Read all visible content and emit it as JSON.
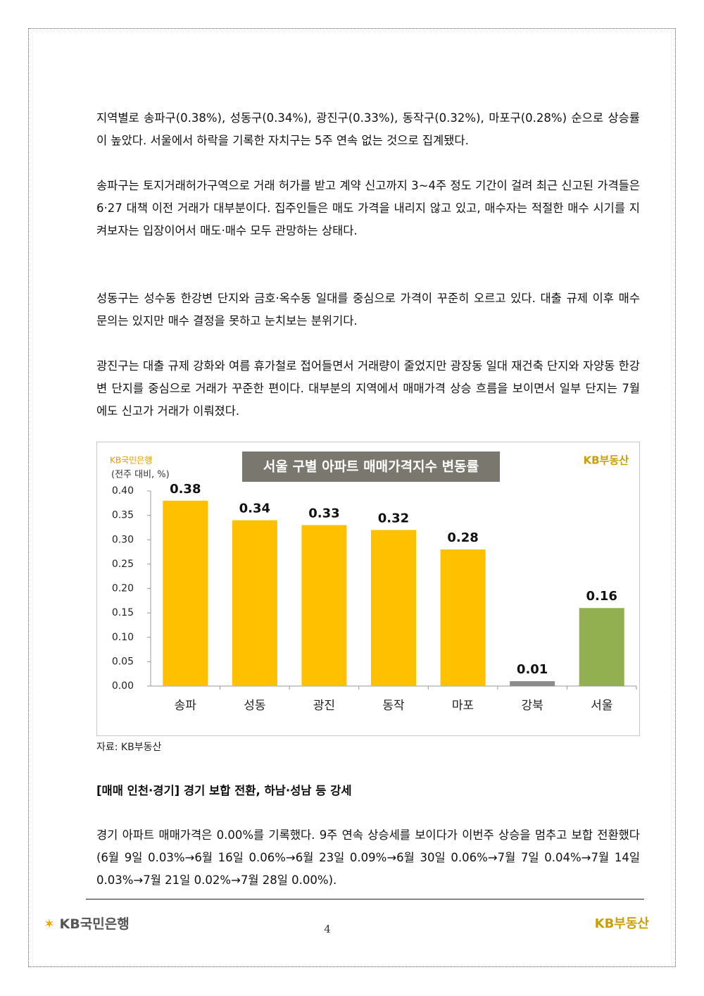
{
  "paragraphs": [
    "지역별로 송파구(0.38%), 성동구(0.34%), 광진구(0.33%), 동작구(0.32%), 마포구(0.28%) 순으로 상승률이 높았다. 서울에서 하락을 기록한 자치구는 5주 연속 없는 것으로 집계됐다.",
    "송파구는 토지거래허가구역으로 거래 허가를 받고 계약 신고까지 3~4주 정도 기간이 걸려 최근 신고된 가격들은 6·27 대책 이전 거래가 대부분이다. 집주인들은 매도 가격을 내리지 않고 있고, 매수자는 적절한 매수 시기를 지켜보자는 입장이어서 매도·매수 모두 관망하는 상태다.",
    "성동구는 성수동 한강변 단지와 금호·옥수동 일대를 중심으로 가격이 꾸준히 오르고 있다. 대출 규제 이후 매수 문의는 있지만 매수 결정을 못하고 눈치보는 분위기다.",
    "광진구는 대출 규제 강화와 여름 휴가철로 접어들면서 거래량이 줄었지만 광장동 일대 재건축 단지와 자양동 한강변 단지를 중심으로 거래가 꾸준한 편이다. 대부분의 지역에서 매매가격 상승 흐름을 보이면서 일부 단지는 7월에도 신고가 거래가 이뤄졌다."
  ],
  "chart_data": {
    "type": "bar",
    "logo": "KB국민은행",
    "title": "서울 구별 아파트 매매가격지수 변동률",
    "brand": "KB부동산",
    "y_label": "(전주 대비, %)",
    "categories": [
      "송파",
      "성동",
      "광진",
      "동작",
      "마포",
      "강북",
      "서울"
    ],
    "values": [
      0.38,
      0.34,
      0.33,
      0.32,
      0.28,
      0.01,
      0.16
    ],
    "colors": [
      "#ffc000",
      "#ffc000",
      "#ffc000",
      "#ffc000",
      "#ffc000",
      "#8c8c8c",
      "#92b050"
    ],
    "ylim": [
      0,
      0.4
    ],
    "yticks": [
      {
        "value": 0,
        "label": "0.00"
      },
      0.05,
      {
        "value": 0.1,
        "label": "0.10"
      },
      0.15,
      {
        "value": 0.2,
        "label": "0.20"
      },
      0.25,
      {
        "value": 0.3,
        "label": "0.30"
      },
      0.35,
      {
        "value": 0.4,
        "label": "0.40"
      }
    ]
  },
  "source": "자료: KB부동산",
  "section_heading": "[매매 인천·경기] 경기 보합 전환, 하남·성남 등 강세",
  "closing_paragraph": "경기 아파트 매매가격은 0.00%를 기록했다. 9주 연속 상승세를 보이다가 이번주 상승을 멈추고 보합 전환했다(6월 9일 0.03%→6월 16일 0.06%→6월 23일 0.09%→6월 30일 0.06%→7월 7일 0.04%→7월 14일 0.03%→7월 21일 0.02%→7월 28일 0.00%).",
  "footer": {
    "left_logo": "KB국민은행",
    "page_number": "4",
    "right_logo": "KB부동산"
  }
}
